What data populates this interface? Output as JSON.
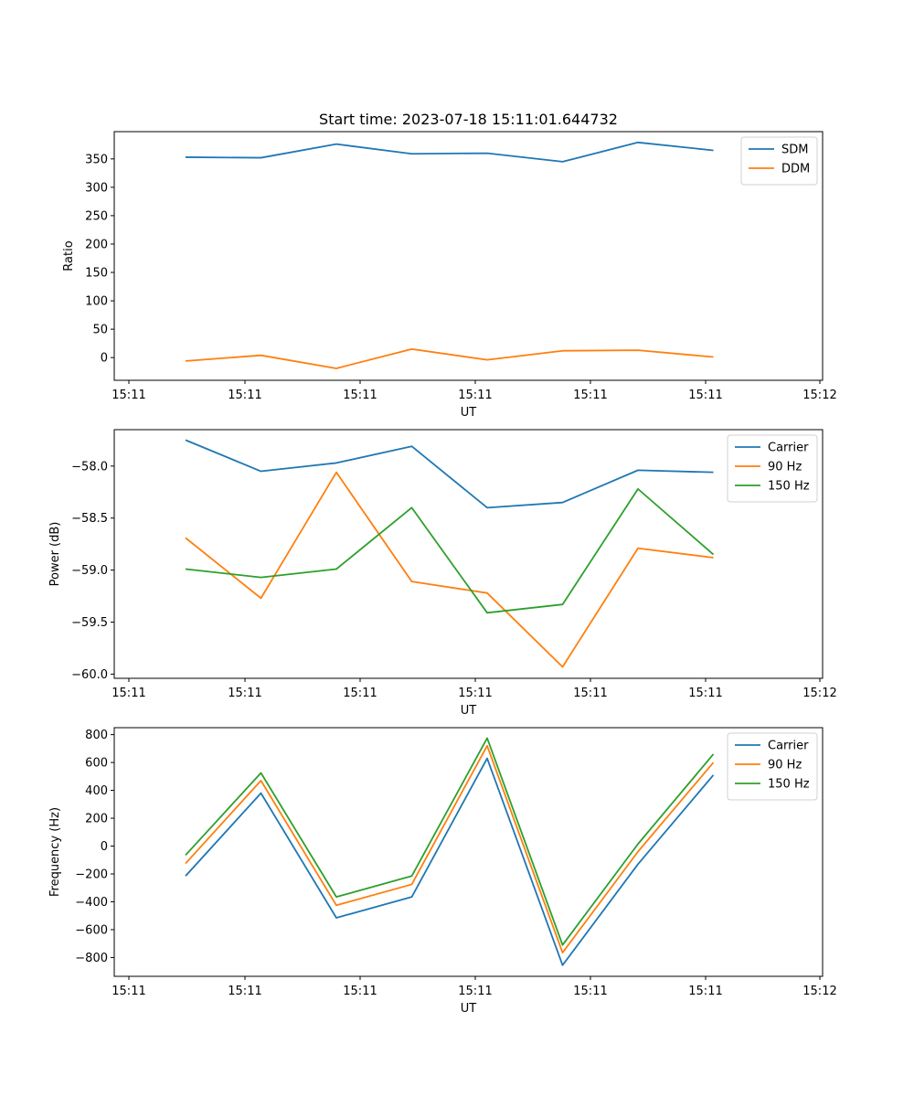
{
  "figure_title": "Start time: 2023-07-18 15:11:01.644732",
  "colors": {
    "blue": "#1f77b4",
    "orange": "#ff7f0e",
    "green": "#2ca02c"
  },
  "chart_data": [
    {
      "type": "line",
      "title": "Start time: 2023-07-18 15:11:01.644732",
      "xlabel": "UT",
      "ylabel": "Ratio",
      "xticklabels": [
        "15:11",
        "15:11",
        "15:11",
        "15:11",
        "15:11",
        "15:11",
        "15:11"
      ],
      "xticklabel_last": "15:12",
      "ylim": [
        -40,
        398
      ],
      "yticks": [
        0,
        50,
        100,
        150,
        200,
        250,
        300,
        350
      ],
      "yticklabels": [
        "0",
        "50",
        "100",
        "150",
        "200",
        "250",
        "300",
        "350"
      ],
      "x": [
        0,
        1,
        2,
        3,
        4,
        5,
        6,
        7
      ],
      "series": [
        {
          "name": "SDM",
          "color": "#1f77b4",
          "values": [
            353,
            352,
            376,
            359,
            360,
            345,
            379,
            365
          ]
        },
        {
          "name": "DDM",
          "color": "#ff7f0e",
          "values": [
            -6,
            4,
            -19,
            15,
            -4,
            12,
            13,
            1
          ]
        }
      ],
      "legend": "top-right"
    },
    {
      "type": "line",
      "title": "",
      "xlabel": "UT",
      "ylabel": "Power (dB)",
      "xticklabels": [
        "15:11",
        "15:11",
        "15:11",
        "15:11",
        "15:11",
        "15:11",
        "15:11"
      ],
      "xticklabel_last": "15:12",
      "ylim": [
        -60.04,
        -57.65
      ],
      "yticks": [
        -60.0,
        -59.5,
        -59.0,
        -58.5,
        -58.0
      ],
      "yticklabels": [
        "−60.0",
        "−59.5",
        "−59.0",
        "−58.5",
        "−58.0"
      ],
      "x": [
        0,
        1,
        2,
        3,
        4,
        5,
        6,
        7
      ],
      "series": [
        {
          "name": "Carrier",
          "color": "#1f77b4",
          "values": [
            -57.75,
            -58.05,
            -57.97,
            -57.81,
            -58.4,
            -58.35,
            -58.04,
            -58.06
          ]
        },
        {
          "name": "90 Hz",
          "color": "#ff7f0e",
          "values": [
            -58.69,
            -59.27,
            -58.06,
            -59.11,
            -59.22,
            -59.93,
            -58.79,
            -58.88
          ]
        },
        {
          "name": "150 Hz",
          "color": "#2ca02c",
          "values": [
            -58.99,
            -59.07,
            -58.99,
            -58.4,
            -59.41,
            -59.33,
            -58.22,
            -58.85
          ]
        }
      ],
      "legend": "top-right"
    },
    {
      "type": "line",
      "title": "",
      "xlabel": "UT",
      "ylabel": "Frequency (Hz)",
      "xticklabels": [
        "15:11",
        "15:11",
        "15:11",
        "15:11",
        "15:11",
        "15:11",
        "15:11"
      ],
      "xticklabel_last": "15:12",
      "ylim": [
        -935,
        850
      ],
      "yticks": [
        -800,
        -600,
        -400,
        -200,
        0,
        200,
        400,
        600,
        800
      ],
      "yticklabels": [
        "−800",
        "−600",
        "−400",
        "−200",
        "0",
        "200",
        "400",
        "600",
        "800"
      ],
      "x": [
        0,
        1,
        2,
        3,
        4,
        5,
        6,
        7
      ],
      "series": [
        {
          "name": "Carrier",
          "color": "#1f77b4",
          "values": [
            -215,
            380,
            -515,
            -365,
            630,
            -855,
            -130,
            510
          ]
        },
        {
          "name": "90 Hz",
          "color": "#ff7f0e",
          "values": [
            -125,
            470,
            -425,
            -275,
            720,
            -765,
            -40,
            600
          ]
        },
        {
          "name": "150 Hz",
          "color": "#2ca02c",
          "values": [
            -65,
            525,
            -365,
            -215,
            775,
            -710,
            15,
            660
          ]
        }
      ],
      "legend": "top-right"
    }
  ]
}
